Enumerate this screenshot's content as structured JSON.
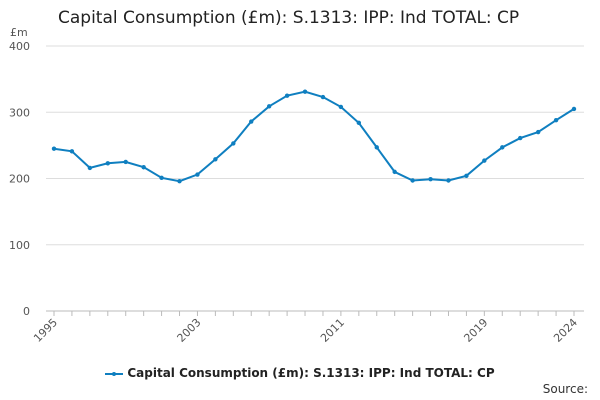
{
  "title": "Capital Consumption (£m): S.1313: IPP: Ind TOTAL: CP",
  "source_label": "Source:",
  "colors": {
    "series": "#0f7fc0",
    "grid": "#dddddd",
    "axis": "#bbbbbb"
  },
  "chart_data": {
    "type": "line",
    "title": "Capital Consumption (£m): S.1313: IPP: Ind TOTAL: CP",
    "ylabel": "£m",
    "xlabel": "",
    "ylim": [
      0,
      400
    ],
    "xlim": [
      1995,
      2024
    ],
    "yticks": [
      0,
      100,
      200,
      300,
      400
    ],
    "xticks": [
      "1995",
      "2003",
      "2011",
      "2019",
      "2024"
    ],
    "grid": true,
    "legend_position": "bottom",
    "series": [
      {
        "name": "Capital Consumption (£m): S.1313: IPP: Ind TOTAL: CP",
        "x": [
          1995,
          1996,
          1997,
          1998,
          1999,
          2000,
          2001,
          2002,
          2003,
          2004,
          2005,
          2006,
          2007,
          2008,
          2009,
          2010,
          2011,
          2012,
          2013,
          2014,
          2015,
          2016,
          2017,
          2018,
          2019,
          2020,
          2021,
          2022,
          2023,
          2024
        ],
        "values": [
          245,
          241,
          216,
          223,
          225,
          217,
          201,
          196,
          206,
          229,
          253,
          286,
          309,
          325,
          331,
          323,
          308,
          284,
          247,
          210,
          197,
          199,
          197,
          204,
          227,
          247,
          261,
          270,
          288,
          305
        ]
      }
    ]
  }
}
